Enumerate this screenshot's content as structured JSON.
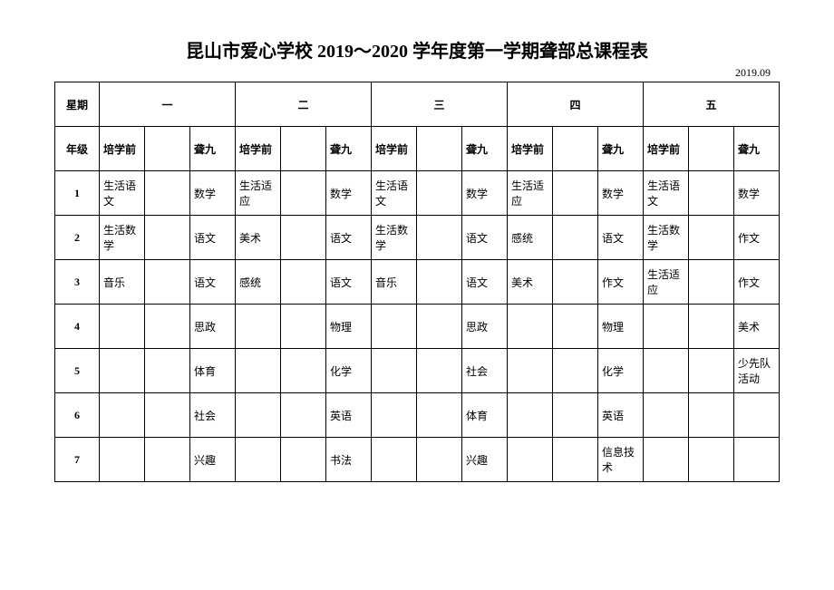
{
  "title": "昆山市爱心学校 2019～2020 学年度第一学期聋部总课程表",
  "date": "2019.09",
  "labels": {
    "weekday": "星期",
    "grade": "年级"
  },
  "weekdays": [
    "一",
    "二",
    "三",
    "四",
    "五"
  ],
  "grade_columns": [
    "培学前",
    "",
    "聋九"
  ],
  "periods": [
    "1",
    "2",
    "3",
    "4",
    "5",
    "6",
    "7"
  ],
  "schedule": {
    "type": "table",
    "background_color": "#ffffff",
    "border_color": "#000000",
    "text_color": "#000000",
    "font_size": 12,
    "rows": [
      [
        [
          "生活语文",
          "",
          "数学"
        ],
        [
          "生活适应",
          "",
          "数学"
        ],
        [
          "生活语文",
          "",
          "数学"
        ],
        [
          "生活适应",
          "",
          "数学"
        ],
        [
          "生活语文",
          "",
          "数学"
        ]
      ],
      [
        [
          "生活数学",
          "",
          "语文"
        ],
        [
          "美术",
          "",
          "语文"
        ],
        [
          "生活数学",
          "",
          "语文"
        ],
        [
          "感统",
          "",
          "语文"
        ],
        [
          "生活数学",
          "",
          "作文"
        ]
      ],
      [
        [
          "音乐",
          "",
          "语文"
        ],
        [
          "感统",
          "",
          "语文"
        ],
        [
          "音乐",
          "",
          "语文"
        ],
        [
          "美术",
          "",
          "作文"
        ],
        [
          "生活适应",
          "",
          "作文"
        ]
      ],
      [
        [
          "",
          "",
          "思政"
        ],
        [
          "",
          "",
          "物理"
        ],
        [
          "",
          "",
          "思政"
        ],
        [
          "",
          "",
          "物理"
        ],
        [
          "",
          "",
          "美术"
        ]
      ],
      [
        [
          "",
          "",
          "体育"
        ],
        [
          "",
          "",
          "化学"
        ],
        [
          "",
          "",
          "社会"
        ],
        [
          "",
          "",
          "化学"
        ],
        [
          "",
          "",
          "少先队活动"
        ]
      ],
      [
        [
          "",
          "",
          "社会"
        ],
        [
          "",
          "",
          "英语"
        ],
        [
          "",
          "",
          "体育"
        ],
        [
          "",
          "",
          "英语"
        ],
        [
          "",
          "",
          ""
        ]
      ],
      [
        [
          "",
          "",
          "兴趣"
        ],
        [
          "",
          "",
          "书法"
        ],
        [
          "",
          "",
          "兴趣"
        ],
        [
          "",
          "",
          "信息技术"
        ],
        [
          "",
          "",
          ""
        ]
      ]
    ]
  }
}
